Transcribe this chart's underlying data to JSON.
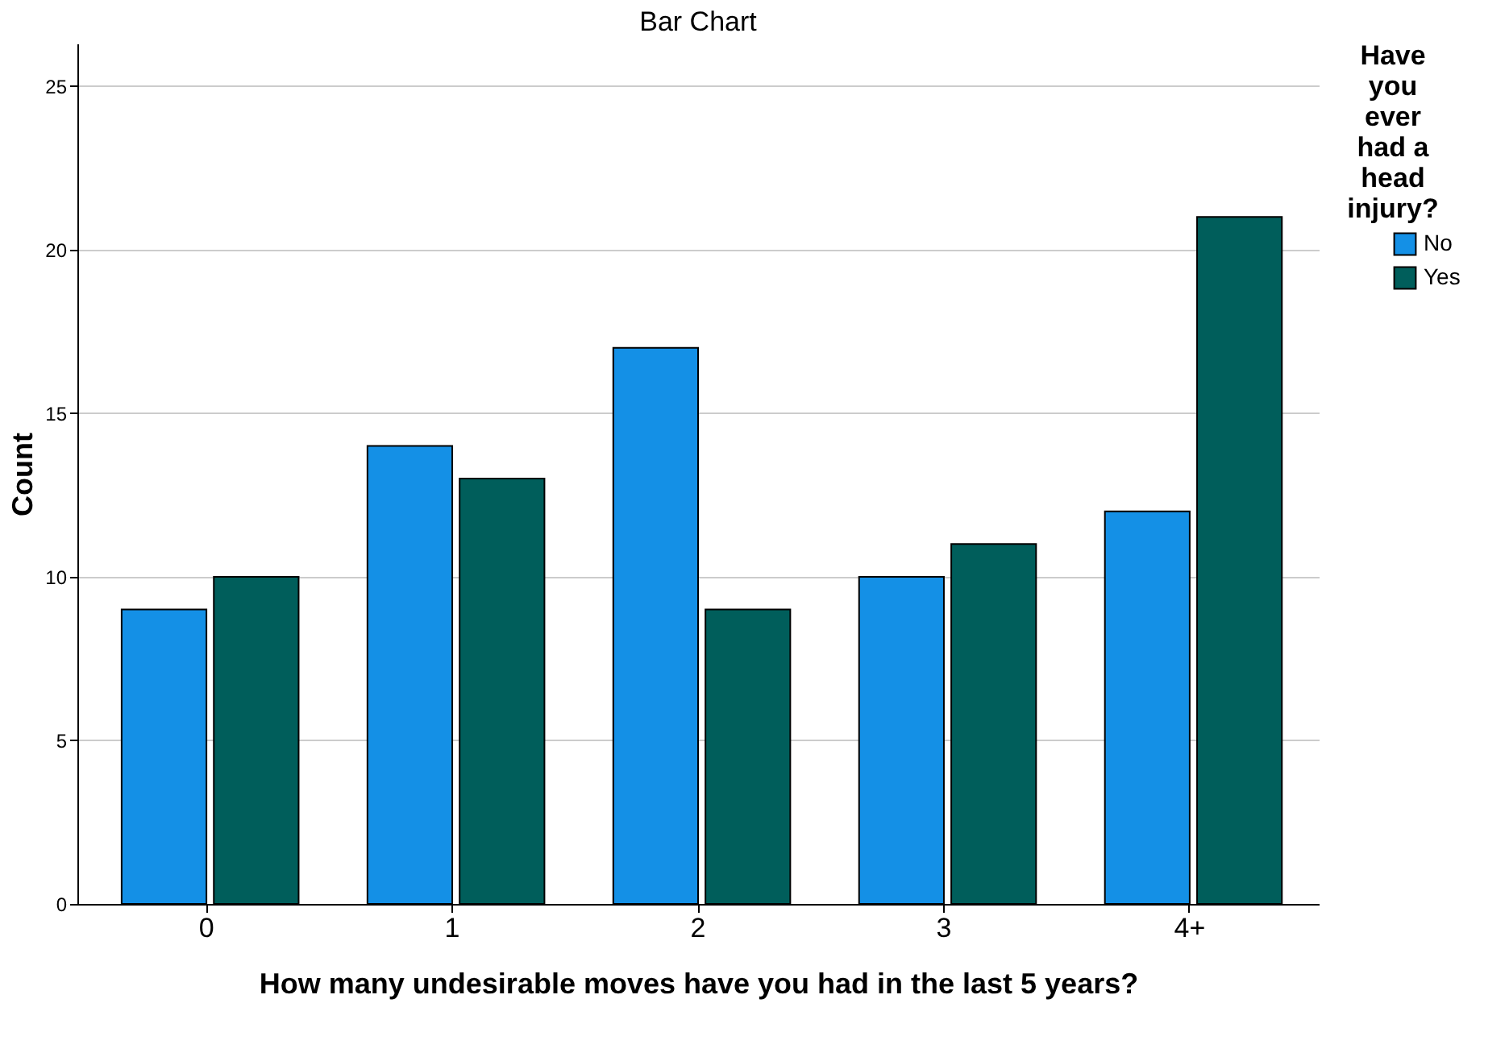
{
  "chart_data": {
    "type": "bar",
    "title": "Bar Chart",
    "xlabel": "How many undesirable moves have you had in the last 5 years?",
    "ylabel": "Count",
    "legend_title": "Have you ever had a head injury?",
    "categories": [
      "0",
      "1",
      "2",
      "3",
      "4+"
    ],
    "series": [
      {
        "name": "No",
        "color": "#1490e6",
        "values": [
          9,
          14,
          17,
          10,
          12
        ]
      },
      {
        "name": "Yes",
        "color": "#005e5b",
        "values": [
          10,
          13,
          9,
          11,
          21
        ]
      }
    ],
    "ylim": [
      0,
      26.3
    ],
    "yticks": [
      0,
      5,
      10,
      15,
      20,
      25
    ],
    "grid": "y",
    "legend": "top right"
  }
}
